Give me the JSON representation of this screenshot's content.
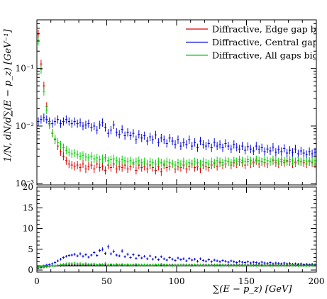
{
  "chart_data": [
    {
      "type": "scatter",
      "panel": "main",
      "xlabel": "∑(E − p_z) [GeV]",
      "ylabel": "1/N, dN/d∑(E − p_z) [GeV⁻¹]",
      "xlim": [
        0,
        200
      ],
      "ylim": [
        0.00095,
        0.7
      ],
      "yscale": "log",
      "y_tick_labels": [
        "10⁻³",
        "10⁻²",
        "10⁻¹"
      ],
      "y_tick_values": [
        0.001,
        0.01,
        0.1
      ],
      "legend_position": "top-right",
      "x": [
        1,
        3,
        5,
        7,
        9,
        11,
        13,
        15,
        17,
        19,
        21,
        23,
        25,
        27,
        29,
        31,
        33,
        35,
        37,
        39,
        41,
        43,
        45,
        47,
        49,
        51,
        53,
        55,
        57,
        59,
        61,
        63,
        65,
        67,
        69,
        71,
        73,
        75,
        77,
        79,
        81,
        83,
        85,
        87,
        89,
        91,
        93,
        95,
        97,
        99,
        101,
        103,
        105,
        107,
        109,
        111,
        113,
        115,
        117,
        119,
        121,
        123,
        125,
        127,
        129,
        131,
        133,
        135,
        137,
        139,
        141,
        143,
        145,
        147,
        149,
        151,
        153,
        155,
        157,
        159,
        161,
        163,
        165,
        167,
        169,
        171,
        173,
        175,
        177,
        179,
        181,
        183,
        185,
        187,
        189,
        191,
        193,
        195,
        197,
        199
      ],
      "series": [
        {
          "name": "Diffractive, Edge gap bigg",
          "color": "#e00000",
          "values": [
            0.4,
            0.12,
            0.05,
            0.022,
            0.011,
            0.0075,
            0.0058,
            0.0045,
            0.0036,
            0.003,
            0.0025,
            0.0022,
            0.0021,
            0.002,
            0.0021,
            0.0019,
            0.0022,
            0.0018,
            0.002,
            0.0021,
            0.0018,
            0.0022,
            0.0019,
            0.002,
            0.0017,
            0.0021,
            0.0019,
            0.0022,
            0.0018,
            0.002,
            0.0019,
            0.0021,
            0.0018,
            0.002,
            0.0022,
            0.0017,
            0.0021,
            0.0019,
            0.002,
            0.0018,
            0.0021,
            0.0019,
            0.0017,
            0.002,
            0.0016,
            0.0021,
            0.0019,
            0.002,
            0.0022,
            0.0018,
            0.002,
            0.0019,
            0.0021,
            0.0018,
            0.002,
            0.0022,
            0.0019,
            0.002,
            0.0018,
            0.0021,
            0.002,
            0.0019,
            0.0021,
            0.0022,
            0.002,
            0.0023,
            0.0021,
            0.0022,
            0.0024,
            0.0021,
            0.0023,
            0.0022,
            0.0024,
            0.0023,
            0.0021,
            0.0024,
            0.0022,
            0.0023,
            0.0025,
            0.0022,
            0.0024,
            0.0023,
            0.0022,
            0.0024,
            0.0025,
            0.0023,
            0.0022,
            0.0024,
            0.0023,
            0.0025,
            0.0024,
            0.0022,
            0.0023,
            0.0025,
            0.0024,
            0.0023,
            0.0022,
            0.0024,
            0.0023,
            0.0022
          ]
        },
        {
          "name": "Diffractive, Central gap bi",
          "color": "#0000e0",
          "values": [
            0.012,
            0.013,
            0.014,
            0.013,
            0.012,
            0.011,
            0.012,
            0.013,
            0.011,
            0.012,
            0.013,
            0.012,
            0.011,
            0.012,
            0.011,
            0.0115,
            0.01,
            0.0105,
            0.011,
            0.0095,
            0.01,
            0.0085,
            0.0105,
            0.0115,
            0.0095,
            0.0075,
            0.0085,
            0.0105,
            0.0078,
            0.0072,
            0.0088,
            0.0068,
            0.0078,
            0.0068,
            0.0075,
            0.0058,
            0.0072,
            0.0062,
            0.0068,
            0.0055,
            0.0065,
            0.0058,
            0.007,
            0.0052,
            0.0062,
            0.0058,
            0.005,
            0.0062,
            0.0055,
            0.0048,
            0.0058,
            0.0045,
            0.0052,
            0.0048,
            0.0058,
            0.0045,
            0.0052,
            0.0042,
            0.0055,
            0.0048,
            0.0045,
            0.005,
            0.0042,
            0.0052,
            0.0045,
            0.0048,
            0.0042,
            0.005,
            0.0045,
            0.004,
            0.0048,
            0.0043,
            0.004,
            0.0045,
            0.0038,
            0.0044,
            0.004,
            0.0037,
            0.0045,
            0.0039,
            0.0042,
            0.0036,
            0.004,
            0.0037,
            0.0043,
            0.0035,
            0.0039,
            0.0036,
            0.0041,
            0.0034,
            0.0038,
            0.0035,
            0.004,
            0.0033,
            0.0037,
            0.0034,
            0.0032,
            0.0036,
            0.0033,
            0.0035
          ]
        },
        {
          "name": "Diffractive, All gaps bigge",
          "color": "#00d000",
          "values": [
            0.3,
            0.095,
            0.04,
            0.019,
            0.0105,
            0.0075,
            0.006,
            0.0052,
            0.0047,
            0.0042,
            0.0038,
            0.0035,
            0.0033,
            0.0034,
            0.0032,
            0.003,
            0.0031,
            0.0029,
            0.0028,
            0.003,
            0.0027,
            0.0028,
            0.0026,
            0.0027,
            0.0028,
            0.0025,
            0.0026,
            0.0027,
            0.0025,
            0.0024,
            0.0026,
            0.0025,
            0.0024,
            0.0025,
            0.0023,
            0.0024,
            0.0025,
            0.0023,
            0.0024,
            0.0022,
            0.0024,
            0.0023,
            0.0022,
            0.0024,
            0.0023,
            0.0022,
            0.0024,
            0.0023,
            0.0022,
            0.0021,
            0.0023,
            0.0022,
            0.0024,
            0.0022,
            0.0023,
            0.0022,
            0.0024,
            0.0023,
            0.0022,
            0.0024,
            0.0023,
            0.0022,
            0.0024,
            0.0023,
            0.0025,
            0.0024,
            0.0023,
            0.0025,
            0.0024,
            0.0023,
            0.0025,
            0.0024,
            0.0026,
            0.0025,
            0.0024,
            0.0026,
            0.0025,
            0.0024,
            0.0026,
            0.0025,
            0.0024,
            0.0026,
            0.0025,
            0.0024,
            0.0026,
            0.0025,
            0.0024,
            0.0026,
            0.0025,
            0.0024,
            0.0026,
            0.0025,
            0.0024,
            0.0025,
            0.0024,
            0.0025,
            0.0024,
            0.0025,
            0.0024,
            0.0025
          ]
        }
      ]
    },
    {
      "type": "scatter",
      "panel": "ratio",
      "xlim": [
        0,
        200
      ],
      "ylim": [
        -0.5,
        20
      ],
      "x_ticks": [
        0,
        50,
        100,
        150,
        200
      ],
      "x_tick_labels": [
        "0",
        "50",
        "100",
        "150",
        "200"
      ],
      "y_ticks": [
        0,
        5,
        10,
        15,
        20
      ],
      "y_tick_labels": [
        "0",
        "5",
        "10",
        "15",
        "20"
      ],
      "reference_line": 1,
      "x": [
        1,
        3,
        5,
        7,
        9,
        11,
        13,
        15,
        17,
        19,
        21,
        23,
        25,
        27,
        29,
        31,
        33,
        35,
        37,
        39,
        41,
        43,
        45,
        47,
        49,
        51,
        53,
        55,
        57,
        59,
        61,
        63,
        65,
        67,
        69,
        71,
        73,
        75,
        77,
        79,
        81,
        83,
        85,
        87,
        89,
        91,
        93,
        95,
        97,
        99,
        101,
        103,
        105,
        107,
        109,
        111,
        113,
        115,
        117,
        119,
        121,
        123,
        125,
        127,
        129,
        131,
        133,
        135,
        137,
        139,
        141,
        143,
        145,
        147,
        149,
        151,
        153,
        155,
        157,
        159,
        161,
        163,
        165,
        167,
        169,
        171,
        173,
        175,
        177,
        179,
        181,
        183,
        185,
        187,
        189,
        191,
        193,
        195,
        197,
        199
      ],
      "series": [
        {
          "color": "#0000e0",
          "values": [
            0.5,
            0.8,
            1.0,
            1.2,
            1.3,
            1.5,
            1.8,
            2.2,
            2.6,
            3.0,
            3.3,
            3.5,
            3.6,
            3.8,
            3.4,
            3.9,
            3.3,
            3.7,
            3.1,
            3.6,
            4.2,
            3.5,
            4.7,
            5.0,
            4.0,
            5.6,
            3.9,
            4.5,
            3.6,
            3.4,
            4.6,
            3.2,
            3.8,
            3.0,
            3.7,
            2.8,
            3.5,
            2.9,
            3.3,
            2.7,
            3.4,
            2.6,
            3.1,
            2.5,
            3.2,
            2.7,
            2.4,
            3.0,
            2.6,
            2.3,
            2.9,
            2.5,
            2.7,
            2.2,
            2.8,
            2.4,
            2.6,
            2.1,
            2.7,
            2.3,
            2.1,
            2.5,
            2.0,
            2.4,
            2.2,
            2.0,
            2.3,
            2.1,
            1.9,
            2.2,
            2.0,
            1.8,
            2.1,
            1.9,
            1.8,
            2.0,
            1.7,
            1.9,
            1.8,
            1.6,
            1.9,
            1.7,
            1.6,
            1.8,
            1.5,
            1.7,
            1.6,
            1.5,
            1.7,
            1.5,
            1.6,
            1.4,
            1.5,
            1.4,
            1.5,
            1.3,
            1.4,
            1.3,
            1.4,
            1.3
          ]
        },
        {
          "color": "#000000",
          "values": [
            0.5,
            0.6,
            0.7,
            0.8,
            0.9,
            1.0,
            1.0,
            1.1,
            1.1,
            1.2,
            1.2,
            1.2,
            1.2,
            1.2,
            1.2,
            1.2,
            1.2,
            1.2,
            1.2,
            1.2,
            1.2,
            1.2,
            1.2,
            1.2,
            1.2,
            1.2,
            1.2,
            1.2,
            1.2,
            1.2,
            1.2,
            1.2,
            1.2,
            1.2,
            1.2,
            1.2,
            1.2,
            1.2,
            1.2,
            1.2,
            1.2,
            1.2,
            1.2,
            1.2,
            1.2,
            1.2,
            1.2,
            1.2,
            1.2,
            1.2,
            1.2,
            1.2,
            1.2,
            1.2,
            1.2,
            1.2,
            1.2,
            1.2,
            1.2,
            1.2,
            1.2,
            1.2,
            1.2,
            1.2,
            1.2,
            1.2,
            1.2,
            1.2,
            1.2,
            1.2,
            1.2,
            1.2,
            1.2,
            1.2,
            1.2,
            1.2,
            1.2,
            1.2,
            1.2,
            1.2,
            1.2,
            1.2,
            1.2,
            1.2,
            1.2,
            1.2,
            1.2,
            1.2,
            1.2,
            1.2,
            1.2,
            1.2,
            1.2,
            1.2,
            1.2,
            1.2,
            1.2,
            1.2,
            1.2,
            1.2
          ]
        },
        {
          "color": "#00d000",
          "values": [
            0.75,
            0.79,
            0.8,
            0.86,
            0.95,
            1.0,
            1.03,
            1.15,
            1.3,
            1.4,
            1.52,
            1.59,
            1.57,
            1.7,
            1.52,
            1.58,
            1.41,
            1.61,
            1.4,
            1.43,
            1.5,
            1.27,
            1.37,
            1.35,
            1.65,
            1.19,
            1.37,
            1.23,
            1.39,
            1.2,
            1.37,
            1.19,
            1.33,
            1.25,
            1.05,
            1.41,
            1.19,
            1.21,
            1.2,
            1.22,
            1.14,
            1.21,
            1.29,
            1.2,
            1.44,
            1.05,
            1.26,
            1.15,
            1.0,
            1.17,
            1.15,
            1.16,
            1.14,
            1.22,
            1.15,
            1.0,
            1.26,
            1.15,
            1.22,
            1.14,
            1.15,
            1.16,
            1.14,
            1.05,
            1.25,
            1.04,
            1.1,
            1.14,
            1.0,
            1.1,
            1.09,
            1.09,
            1.08,
            1.09,
            1.14,
            1.08,
            1.14,
            1.04,
            1.04,
            1.14,
            1.0,
            1.13,
            1.14,
            1.0,
            1.04,
            1.09,
            1.09,
            1.08,
            1.09,
            1.04,
            1.08,
            1.14,
            1.04,
            1.0,
            1.04,
            1.0,
            1.04,
            1.0,
            1.04,
            1.14
          ]
        }
      ]
    }
  ]
}
